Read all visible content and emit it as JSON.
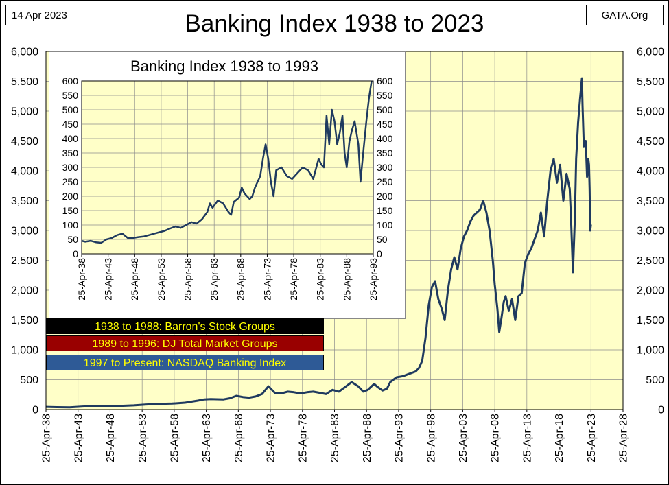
{
  "header": {
    "date": "14 Apr 2023",
    "site": "GATA.Org",
    "title": "Banking Index 1938 to 2023"
  },
  "colors": {
    "plot_background": "#ffffc8",
    "line": "#1f3a5f",
    "grid": "#8c8c8c"
  },
  "legend": [
    {
      "text": "1938 to 1988: Barron's Stock Groups",
      "background": "#000000",
      "text_color": "#ffff00"
    },
    {
      "text": "1989 to 1996: DJ Total Market Groups",
      "background": "#990000",
      "text_color": "#ffff00"
    },
    {
      "text": "1997 to Present: NASDAQ Banking Index",
      "background": "#2e5a96",
      "text_color": "#ffff00"
    }
  ],
  "chart_data": [
    {
      "id": "main",
      "type": "line",
      "title": "Banking Index 1938 to 2023",
      "xlim": [
        1938.31,
        2028.31
      ],
      "ylim": [
        0,
        6000
      ],
      "y_ticks": [
        0,
        500,
        1000,
        1500,
        2000,
        2500,
        3000,
        3500,
        4000,
        4500,
        5000,
        5500,
        6000
      ],
      "y_tick_labels": [
        "0",
        "500",
        "1,000",
        "1,500",
        "2,000",
        "2,500",
        "3,000",
        "3,500",
        "4,000",
        "4,500",
        "5,000",
        "5,500",
        "6,000"
      ],
      "x_ticks": [
        1938.31,
        1943.31,
        1948.31,
        1953.31,
        1958.31,
        1963.31,
        1968.31,
        1973.31,
        1978.31,
        1983.31,
        1988.31,
        1993.31,
        1998.31,
        2003.31,
        2008.31,
        2013.31,
        2018.31,
        2023.31,
        2028.31
      ],
      "x_tick_labels": [
        "25-Apr-38",
        "25-Apr-43",
        "25-Apr-48",
        "25-Apr-53",
        "25-Apr-58",
        "25-Apr-63",
        "25-Apr-68",
        "25-Apr-73",
        "25-Apr-78",
        "25-Apr-83",
        "25-Apr-88",
        "25-Apr-93",
        "25-Apr-98",
        "25-Apr-03",
        "25-Apr-08",
        "25-Apr-13",
        "25-Apr-18",
        "25-Apr-23",
        "25-Apr-28"
      ],
      "grid": true,
      "y_axis_labels_both_sides": true,
      "series": [
        {
          "x": [
            1938.3,
            1940,
            1942,
            1944,
            1946,
            1948,
            1950,
            1952,
            1954,
            1956,
            1958,
            1960,
            1962,
            1963,
            1964,
            1966,
            1967,
            1968,
            1969,
            1970,
            1971,
            1972,
            1973,
            1974,
            1975,
            1976,
            1977,
            1978,
            1979,
            1980,
            1981,
            1982,
            1983,
            1984,
            1985,
            1986,
            1987,
            1987.8,
            1988.5,
            1989.5,
            1990,
            1990.8,
            1991.5,
            1992,
            1993,
            1994,
            1995,
            1995.5,
            1996,
            1996.5,
            1997,
            1997.5,
            1998,
            1998.5,
            1999,
            1999.5,
            2000,
            2000.5,
            2001,
            2001.5,
            2002,
            2002.5,
            2003,
            2003.5,
            2004,
            2004.5,
            2005,
            2005.5,
            2006,
            2006.5,
            2007,
            2007.5,
            2008,
            2008.3,
            2008.7,
            2009,
            2009.3,
            2009.7,
            2010,
            2010.5,
            2011,
            2011.5,
            2012,
            2012.5,
            2013,
            2013.5,
            2014,
            2014.5,
            2015,
            2015.5,
            2016,
            2016.5,
            2017,
            2017.5,
            2018,
            2018.5,
            2019,
            2019.5,
            2020,
            2020.2,
            2020.5,
            2020.8,
            2021,
            2021.3,
            2021.6,
            2021.9,
            2022,
            2022.2,
            2022.5,
            2022.7,
            2022.9,
            2023,
            2023.1,
            2023.2,
            2023.3
          ],
          "y": [
            45,
            40,
            38,
            50,
            60,
            55,
            62,
            70,
            85,
            95,
            100,
            115,
            150,
            170,
            175,
            170,
            190,
            230,
            210,
            200,
            220,
            260,
            390,
            280,
            270,
            300,
            290,
            270,
            290,
            300,
            280,
            260,
            330,
            300,
            380,
            460,
            390,
            300,
            330,
            430,
            380,
            320,
            350,
            460,
            540,
            560,
            600,
            620,
            640,
            700,
            820,
            1200,
            1750,
            2050,
            2150,
            1850,
            1700,
            1500,
            2000,
            2350,
            2550,
            2350,
            2700,
            2900,
            3000,
            3150,
            3250,
            3300,
            3350,
            3500,
            3300,
            3000,
            2500,
            2100,
            1700,
            1300,
            1500,
            1800,
            1900,
            1650,
            1850,
            1500,
            1900,
            1950,
            2450,
            2600,
            2700,
            2850,
            3000,
            3300,
            2900,
            3500,
            4000,
            4200,
            3800,
            4100,
            3500,
            3950,
            3700,
            3200,
            2300,
            3200,
            4200,
            4800,
            5200,
            5550,
            5100,
            4400,
            4500,
            3900,
            4200,
            4100,
            3700,
            3000,
            3100
          ],
          "color": "#1f3a5f"
        }
      ]
    },
    {
      "id": "inset",
      "type": "line",
      "title": "Banking Index 1938 to 1993",
      "xlim": [
        1938.31,
        1993.31
      ],
      "ylim": [
        0,
        600
      ],
      "y_ticks": [
        0,
        50,
        100,
        150,
        200,
        250,
        300,
        350,
        400,
        450,
        500,
        550,
        600
      ],
      "y_tick_labels": [
        "0",
        "50",
        "100",
        "150",
        "200",
        "250",
        "300",
        "350",
        "400",
        "450",
        "500",
        "550",
        "600"
      ],
      "x_ticks": [
        1938.31,
        1943.31,
        1948.31,
        1953.31,
        1958.31,
        1963.31,
        1968.31,
        1973.31,
        1978.31,
        1983.31,
        1988.31,
        1993.31
      ],
      "x_tick_labels": [
        "25-Apr-38",
        "25-Apr-43",
        "25-Apr-48",
        "25-Apr-53",
        "25-Apr-58",
        "25-Apr-63",
        "25-Apr-68",
        "25-Apr-73",
        "25-Apr-78",
        "25-Apr-83",
        "25-Apr-88",
        "25-Apr-93"
      ],
      "grid": true,
      "y_axis_labels_both_sides": true,
      "series": [
        {
          "x": [
            1938.3,
            1939,
            1940,
            1941,
            1942,
            1943,
            1944,
            1945,
            1946,
            1947,
            1948,
            1949,
            1950,
            1951,
            1952,
            1953,
            1954,
            1955,
            1956,
            1957,
            1958,
            1959,
            1960,
            1961,
            1962,
            1962.5,
            1963,
            1964,
            1965,
            1966,
            1966.5,
            1967,
            1968,
            1968.5,
            1969,
            1970,
            1970.5,
            1971,
            1972,
            1972.5,
            1973,
            1973.5,
            1974,
            1974.5,
            1975,
            1976,
            1977,
            1978,
            1979,
            1980,
            1981,
            1982,
            1983,
            1983.5,
            1984,
            1984.5,
            1985,
            1985.5,
            1986,
            1986.5,
            1987,
            1987.5,
            1987.9,
            1988.3,
            1988.8,
            1989.3,
            1989.8,
            1990.5,
            1990.9,
            1991.3,
            1992,
            1992.5,
            1993
          ],
          "y": [
            45,
            42,
            45,
            40,
            38,
            50,
            55,
            65,
            70,
            55,
            55,
            58,
            60,
            65,
            70,
            75,
            80,
            88,
            95,
            90,
            100,
            110,
            105,
            120,
            145,
            175,
            160,
            185,
            175,
            145,
            135,
            180,
            195,
            230,
            210,
            190,
            200,
            230,
            270,
            330,
            380,
            330,
            250,
            200,
            290,
            300,
            270,
            260,
            280,
            300,
            290,
            260,
            330,
            310,
            300,
            480,
            380,
            500,
            460,
            380,
            420,
            480,
            350,
            300,
            390,
            430,
            460,
            380,
            250,
            330,
            460,
            540,
            600
          ],
          "color": "#1f3a5f"
        }
      ]
    }
  ]
}
